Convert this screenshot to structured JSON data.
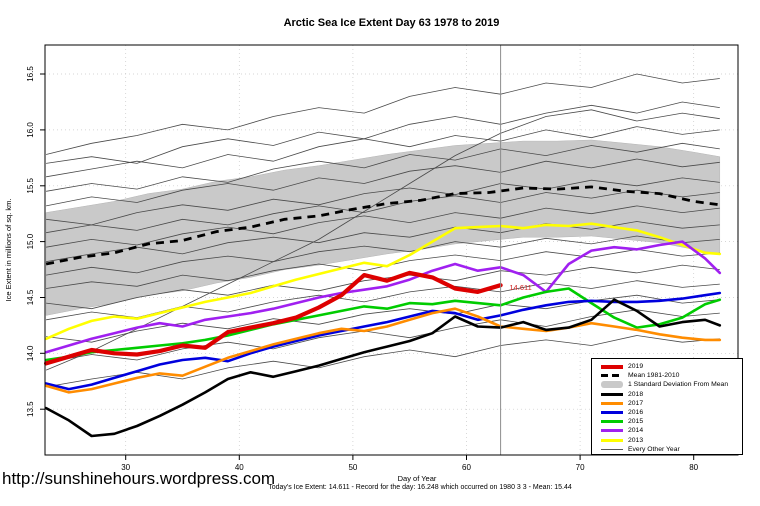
{
  "page": {
    "footer_url": "http://sunshinehours.wordpress.com",
    "footer_stats": "Today's Ice Extent: 14.611  - Record for the day: 16.248 which occurred on 1980 3 3  - Mean: 15.44"
  },
  "chart_data": {
    "type": "line",
    "title": "Arctic Sea Ice Extent Day 63 1978 to 2019",
    "xlabel": "Day of Year",
    "ylabel": "Ice Extent in millions of sq. km.",
    "xlim": [
      22.9,
      83.9
    ],
    "ylim": [
      13.09,
      16.76
    ],
    "x_ticks": [
      30,
      40,
      50,
      60,
      70,
      80
    ],
    "x_tick_labels": [
      "30",
      "40",
      "50",
      "60",
      "70",
      "80"
    ],
    "y_ticks": [
      13.5,
      14.0,
      14.5,
      15.0,
      15.5,
      16.0,
      16.5
    ],
    "y_tick_labels": [
      "13.5",
      "14.0",
      "14.5",
      "15.0",
      "15.5",
      "16.0",
      "16.5"
    ],
    "grid": true,
    "legend_position": "bottom-right",
    "vline_day": 63,
    "annotation": {
      "text": "14.611",
      "day": 63.6,
      "value": 14.59,
      "color": "#cc2222"
    },
    "colors": {
      "band": "#c9c9c9",
      "grid": "#c8c8c8",
      "vline": "#8c8c8c",
      "other_years": "#4a4a4a"
    },
    "band": {
      "label": "1 Standard Deviation From Mean",
      "days": [
        23,
        26,
        29,
        32,
        35,
        38,
        41,
        44,
        47,
        50,
        53,
        56,
        59,
        62,
        65,
        68,
        71,
        74,
        77,
        80,
        82.3
      ],
      "upper": [
        15.26,
        15.31,
        15.36,
        15.43,
        15.47,
        15.54,
        15.58,
        15.64,
        15.68,
        15.73,
        15.78,
        15.82,
        15.86,
        15.88,
        15.9,
        15.9,
        15.91,
        15.88,
        15.85,
        15.8,
        15.76
      ],
      "lower": [
        14.34,
        14.4,
        14.45,
        14.52,
        14.56,
        14.63,
        14.68,
        14.75,
        14.79,
        14.84,
        14.89,
        14.93,
        14.98,
        15.01,
        15.04,
        15.04,
        15.05,
        15.02,
        14.99,
        14.93,
        14.89
      ]
    },
    "mean": {
      "label": "Mean 1981-2010",
      "days": [
        23,
        26,
        29,
        32,
        35,
        38,
        41,
        44,
        47,
        50,
        53,
        56,
        59,
        62,
        65,
        68,
        71,
        74,
        77,
        80,
        82.3
      ],
      "values": [
        14.8,
        14.86,
        14.9,
        14.98,
        15.01,
        15.09,
        15.13,
        15.2,
        15.23,
        15.29,
        15.34,
        15.37,
        15.43,
        15.44,
        15.48,
        15.47,
        15.49,
        15.45,
        15.43,
        15.36,
        15.33
      ]
    },
    "series_days": [
      23,
      25,
      27,
      29,
      31,
      33,
      35,
      37,
      39,
      41,
      43,
      45,
      47,
      49,
      51,
      53,
      55,
      57,
      59,
      61,
      63,
      65,
      67,
      69,
      71,
      73,
      75,
      77,
      79,
      81,
      82.3
    ],
    "series": [
      {
        "name": "2013",
        "color": "#ffff00",
        "width": 2.6,
        "values": [
          14.13,
          14.22,
          14.29,
          14.33,
          14.31,
          14.36,
          14.41,
          14.46,
          14.5,
          14.54,
          14.6,
          14.66,
          14.71,
          14.76,
          14.81,
          14.78,
          14.88,
          15.0,
          15.12,
          15.13,
          15.14,
          15.12,
          15.15,
          15.14,
          15.16,
          15.13,
          15.1,
          15.04,
          14.97,
          14.9,
          14.89
        ]
      },
      {
        "name": "2014",
        "color": "#a020f0",
        "width": 2.6,
        "values": [
          14.01,
          14.07,
          14.13,
          14.18,
          14.23,
          14.27,
          14.24,
          14.3,
          14.33,
          14.36,
          14.4,
          14.45,
          14.5,
          14.54,
          14.57,
          14.6,
          14.66,
          14.74,
          14.8,
          14.74,
          14.77,
          14.7,
          14.55,
          14.8,
          14.92,
          14.95,
          14.93,
          14.97,
          15.0,
          14.85,
          14.72
        ]
      },
      {
        "name": "2015",
        "color": "#00cc00",
        "width": 2.6,
        "values": [
          13.94,
          13.97,
          14.01,
          14.03,
          14.05,
          14.07,
          14.09,
          14.12,
          14.16,
          14.21,
          14.26,
          14.3,
          14.34,
          14.38,
          14.42,
          14.4,
          14.45,
          14.44,
          14.47,
          14.45,
          14.43,
          14.5,
          14.55,
          14.58,
          14.45,
          14.32,
          14.23,
          14.26,
          14.32,
          14.44,
          14.48
        ]
      },
      {
        "name": "2016",
        "color": "#0000dd",
        "width": 2.6,
        "values": [
          13.73,
          13.68,
          13.72,
          13.78,
          13.84,
          13.9,
          13.94,
          13.96,
          13.93,
          14.0,
          14.06,
          14.11,
          14.16,
          14.2,
          14.24,
          14.28,
          14.33,
          14.38,
          14.36,
          14.3,
          14.34,
          14.39,
          14.43,
          14.46,
          14.47,
          14.46,
          14.46,
          14.47,
          14.49,
          14.52,
          14.54
        ]
      },
      {
        "name": "2017",
        "color": "#ff8c00",
        "width": 2.6,
        "values": [
          13.71,
          13.65,
          13.68,
          13.73,
          13.78,
          13.82,
          13.8,
          13.88,
          13.96,
          14.02,
          14.08,
          14.13,
          14.18,
          14.22,
          14.2,
          14.24,
          14.3,
          14.36,
          14.4,
          14.33,
          14.24,
          14.22,
          14.2,
          14.23,
          14.27,
          14.24,
          14.21,
          14.17,
          14.14,
          14.12,
          14.12
        ]
      },
      {
        "name": "2018",
        "color": "#000000",
        "width": 2.6,
        "values": [
          13.51,
          13.4,
          13.26,
          13.28,
          13.35,
          13.44,
          13.54,
          13.65,
          13.77,
          13.83,
          13.79,
          13.84,
          13.89,
          13.95,
          14.01,
          14.06,
          14.11,
          14.18,
          14.33,
          14.24,
          14.23,
          14.28,
          14.21,
          14.23,
          14.3,
          14.48,
          14.38,
          14.24,
          14.28,
          14.3,
          14.25
        ]
      },
      {
        "name": "2019",
        "color": "#dd0000",
        "width": 4.2,
        "values": [
          13.91,
          13.97,
          14.03,
          14.0,
          13.99,
          14.02,
          14.07,
          14.05,
          14.19,
          14.23,
          14.27,
          14.32,
          14.41,
          14.52,
          14.7,
          14.65,
          14.72,
          14.68,
          14.58,
          14.55,
          14.61
        ]
      }
    ],
    "other_years": {
      "label": "Every Other Year",
      "days": [
        23,
        27,
        31,
        35,
        39,
        43,
        47,
        51,
        55,
        59,
        63,
        67,
        71,
        75,
        79,
        82.3
      ],
      "lines": [
        [
          15.78,
          15.88,
          15.95,
          16.05,
          16.0,
          16.12,
          16.2,
          16.15,
          16.3,
          16.38,
          16.32,
          16.42,
          16.38,
          16.5,
          16.42,
          16.46
        ],
        [
          15.7,
          15.76,
          15.7,
          15.85,
          15.92,
          15.86,
          15.98,
          15.92,
          16.05,
          16.12,
          16.05,
          16.15,
          16.22,
          16.15,
          16.25,
          16.2
        ],
        [
          15.58,
          15.65,
          15.72,
          15.66,
          15.78,
          15.72,
          15.85,
          15.92,
          15.85,
          15.95,
          15.9,
          16.0,
          15.93,
          16.03,
          15.96,
          16.0
        ],
        [
          15.45,
          15.52,
          15.47,
          15.58,
          15.53,
          15.65,
          15.72,
          15.66,
          15.78,
          15.73,
          15.83,
          15.77,
          15.86,
          15.8,
          15.88,
          15.83
        ],
        [
          15.32,
          15.4,
          15.35,
          15.46,
          15.52,
          15.46,
          15.57,
          15.52,
          15.63,
          15.68,
          15.62,
          15.72,
          15.66,
          15.74,
          15.67,
          15.71
        ],
        [
          15.2,
          15.15,
          15.26,
          15.33,
          15.28,
          15.38,
          15.33,
          15.43,
          15.48,
          15.42,
          15.52,
          15.47,
          15.55,
          15.5,
          15.57,
          15.53
        ],
        [
          15.08,
          15.15,
          15.1,
          15.2,
          15.15,
          15.25,
          15.32,
          15.26,
          15.36,
          15.41,
          15.35,
          15.44,
          15.39,
          15.46,
          15.4,
          15.44
        ],
        [
          14.95,
          15.02,
          14.97,
          15.07,
          15.13,
          15.07,
          15.17,
          15.23,
          15.17,
          15.26,
          15.21,
          15.3,
          15.25,
          15.32,
          15.26,
          15.3
        ],
        [
          14.82,
          14.89,
          14.95,
          14.89,
          14.99,
          15.04,
          14.99,
          15.08,
          15.04,
          15.13,
          15.08,
          15.16,
          15.11,
          15.18,
          15.12,
          15.15
        ],
        [
          14.7,
          14.77,
          14.72,
          14.82,
          14.87,
          14.82,
          14.91,
          14.96,
          14.91,
          15.0,
          14.95,
          15.03,
          14.98,
          15.05,
          14.99,
          15.02
        ],
        [
          14.58,
          14.64,
          14.6,
          14.7,
          14.65,
          14.74,
          14.8,
          14.74,
          14.83,
          14.88,
          14.83,
          14.91,
          14.86,
          14.93,
          14.87,
          14.9
        ],
        [
          14.45,
          14.4,
          14.5,
          14.57,
          14.52,
          14.61,
          14.56,
          14.65,
          14.7,
          14.65,
          14.74,
          14.7,
          14.77,
          14.72,
          14.79,
          14.75
        ],
        [
          14.3,
          14.37,
          14.32,
          14.42,
          14.37,
          14.46,
          14.52,
          14.46,
          14.55,
          14.6,
          14.55,
          14.63,
          14.58,
          14.65,
          14.59,
          14.62
        ],
        [
          14.15,
          14.1,
          14.2,
          14.27,
          14.22,
          14.31,
          14.26,
          14.35,
          14.4,
          14.35,
          14.44,
          14.4,
          14.47,
          14.52,
          14.45,
          14.48
        ],
        [
          13.92,
          13.99,
          13.94,
          14.04,
          14.1,
          14.04,
          14.14,
          14.2,
          14.14,
          14.23,
          14.3,
          14.24,
          14.33,
          14.39,
          14.33,
          14.36
        ],
        [
          13.7,
          13.77,
          13.83,
          13.77,
          13.87,
          13.93,
          13.87,
          13.97,
          14.03,
          13.97,
          14.07,
          14.12,
          14.07,
          14.16,
          14.1,
          14.13
        ],
        [
          13.85,
          14.02,
          14.22,
          14.42,
          14.62,
          14.82,
          15.02,
          15.27,
          15.52,
          15.77,
          15.97,
          16.12,
          16.18,
          16.08,
          16.15,
          16.1
        ]
      ]
    },
    "legend": [
      {
        "label": "2019",
        "swatch": "line",
        "color": "#dd0000",
        "thick": 4
      },
      {
        "label": "Mean 1981-2010",
        "swatch": "dashed",
        "color": "#000000",
        "thick": 3
      },
      {
        "label": "1 Standard Deviation From Mean",
        "swatch": "band",
        "color": "#c9c9c9",
        "thick": 7
      },
      {
        "label": "2018",
        "swatch": "line",
        "color": "#000000",
        "thick": 3
      },
      {
        "label": "2017",
        "swatch": "line",
        "color": "#ff8c00",
        "thick": 3
      },
      {
        "label": "2016",
        "swatch": "line",
        "color": "#0000dd",
        "thick": 3
      },
      {
        "label": "2015",
        "swatch": "line",
        "color": "#00cc00",
        "thick": 3
      },
      {
        "label": "2014",
        "swatch": "line",
        "color": "#a020f0",
        "thick": 3
      },
      {
        "label": "2013",
        "swatch": "line",
        "color": "#ffff00",
        "thick": 3
      },
      {
        "label": "Every Other Year",
        "swatch": "line",
        "color": "#555555",
        "thick": 1
      }
    ]
  }
}
